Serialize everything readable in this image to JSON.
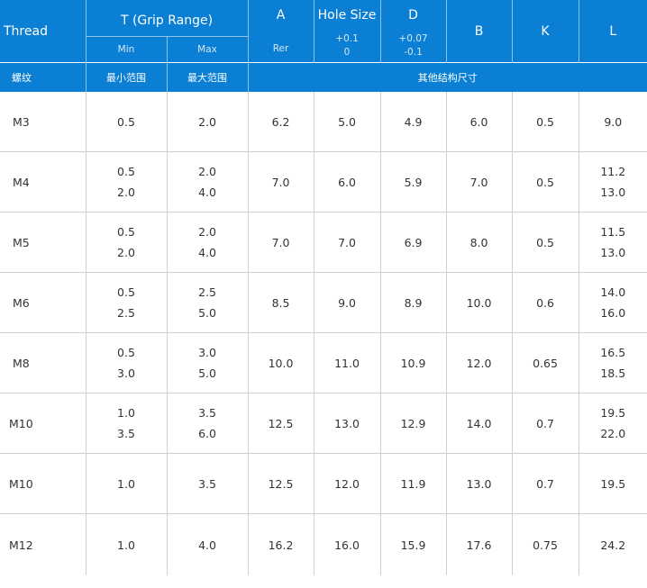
{
  "header": {
    "thread": "Thread",
    "grip_range": "T  (Grip Range)",
    "grip_min": "Min",
    "grip_max": "Max",
    "a": "A",
    "a_sub": "Rer",
    "hole_size": "Hole Size",
    "hole_tol_plus": "+0.1",
    "hole_tol_minus": "0",
    "d": "D",
    "d_tol_plus": "+0.07",
    "d_tol_minus": "-0.1",
    "b": "B",
    "k": "K",
    "l": "L"
  },
  "header_cn": {
    "thread": "螺纹",
    "min": "最小范围",
    "max": "最大范围",
    "other": "其他结构尺寸"
  },
  "rows": [
    {
      "thread": "M3",
      "tmin": [
        "0.5"
      ],
      "tmax": [
        "2.0"
      ],
      "a": "6.2",
      "hole": "5.0",
      "d": "4.9",
      "b": "6.0",
      "k": "0.5",
      "l": [
        "9.0"
      ]
    },
    {
      "thread": "M4",
      "tmin": [
        "0.5",
        "2.0"
      ],
      "tmax": [
        "2.0",
        "4.0"
      ],
      "a": "7.0",
      "hole": "6.0",
      "d": "5.9",
      "b": "7.0",
      "k": "0.5",
      "l": [
        "11.2",
        "13.0"
      ]
    },
    {
      "thread": "M5",
      "tmin": [
        "0.5",
        "2.0"
      ],
      "tmax": [
        "2.0",
        "4.0"
      ],
      "a": "7.0",
      "hole": "7.0",
      "d": "6.9",
      "b": "8.0",
      "k": "0.5",
      "l": [
        "11.5",
        "13.0"
      ]
    },
    {
      "thread": "M6",
      "tmin": [
        "0.5",
        "2.5"
      ],
      "tmax": [
        "2.5",
        "5.0"
      ],
      "a": "8.5",
      "hole": "9.0",
      "d": "8.9",
      "b": "10.0",
      "k": "0.6",
      "l": [
        "14.0",
        "16.0"
      ]
    },
    {
      "thread": "M8",
      "tmin": [
        "0.5",
        "3.0"
      ],
      "tmax": [
        "3.0",
        "5.0"
      ],
      "a": "10.0",
      "hole": "11.0",
      "d": "10.9",
      "b": "12.0",
      "k": "0.65",
      "l": [
        "16.5",
        "18.5"
      ]
    },
    {
      "thread": "M10",
      "tmin": [
        "1.0",
        "3.5"
      ],
      "tmax": [
        "3.5",
        "6.0"
      ],
      "a": "12.5",
      "hole": "13.0",
      "d": "12.9",
      "b": "14.0",
      "k": "0.7",
      "l": [
        "19.5",
        "22.0"
      ]
    },
    {
      "thread": "M10",
      "tmin": [
        "1.0"
      ],
      "tmax": [
        "3.5"
      ],
      "a": "12.5",
      "hole": "12.0",
      "d": "11.9",
      "b": "13.0",
      "k": "0.7",
      "l": [
        "19.5"
      ]
    },
    {
      "thread": "M12",
      "tmin": [
        "1.0"
      ],
      "tmax": [
        "4.0"
      ],
      "a": "16.2",
      "hole": "16.0",
      "d": "15.9",
      "b": "17.6",
      "k": "0.75",
      "l": [
        "24.2"
      ]
    }
  ],
  "colors": {
    "header_bg": "#0a7fd3",
    "header_text": "#ffffff",
    "body_text": "#333333",
    "grid_line": "#cfcfcf"
  }
}
